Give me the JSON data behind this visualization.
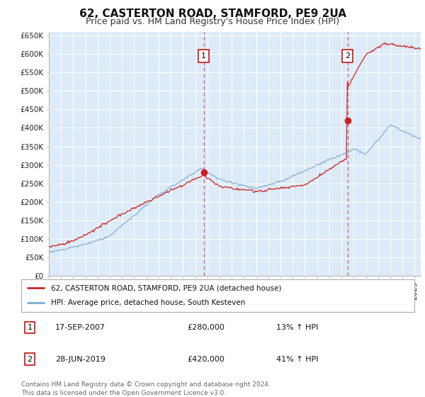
{
  "title": "62, CASTERTON ROAD, STAMFORD, PE9 2UA",
  "subtitle": "Price paid vs. HM Land Registry's House Price Index (HPI)",
  "plot_bg_color": "#ddeaf7",
  "fig_bg_color": "#ffffff",
  "ylim": [
    0,
    660000
  ],
  "yticks": [
    0,
    50000,
    100000,
    150000,
    200000,
    250000,
    300000,
    350000,
    400000,
    450000,
    500000,
    550000,
    600000,
    650000
  ],
  "xlim_start": 1995.0,
  "xlim_end": 2025.5,
  "red_line_color": "#cc2222",
  "blue_line_color": "#7aadd4",
  "marker1_x": 2007.71,
  "marker1_y": 280000,
  "marker2_x": 2019.49,
  "marker2_y": 420000,
  "legend_label1": "62, CASTERTON ROAD, STAMFORD, PE9 2UA (detached house)",
  "legend_label2": "HPI: Average price, detached house, South Kesteven",
  "table_row1": [
    "1",
    "17-SEP-2007",
    "£280,000",
    "13% ↑ HPI"
  ],
  "table_row2": [
    "2",
    "28-JUN-2019",
    "£420,000",
    "41% ↑ HPI"
  ],
  "footer": "Contains HM Land Registry data © Crown copyright and database right 2024.\nThis data is licensed under the Open Government Licence v3.0.",
  "title_fontsize": 11,
  "subtitle_fontsize": 9,
  "tick_fontsize": 7.5
}
